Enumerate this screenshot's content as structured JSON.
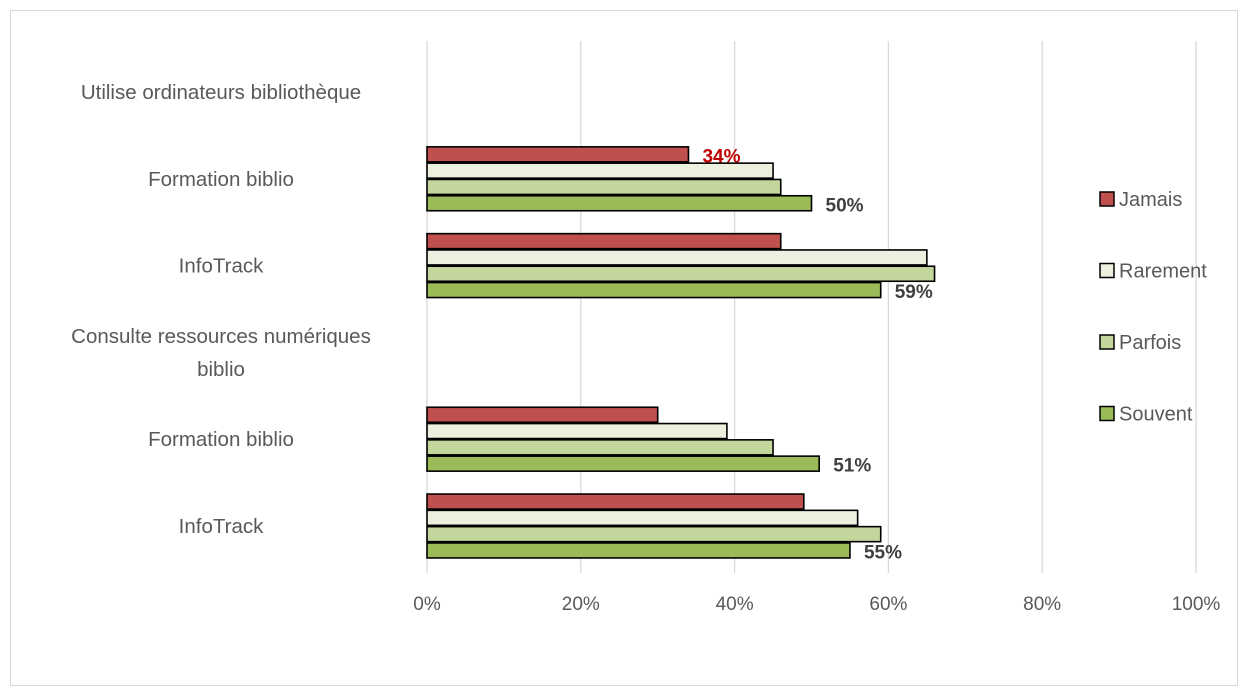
{
  "chart_data": {
    "type": "bar",
    "orientation": "horizontal",
    "title": "",
    "xlabel": "",
    "ylabel": "",
    "xlim": [
      0,
      1
    ],
    "x_ticks": [
      "0%",
      "20%",
      "40%",
      "60%",
      "80%",
      "100%"
    ],
    "grid": true,
    "legend_position": "right",
    "categories": [
      "Utilise ordinateurs bibliothèque",
      "Formation biblio",
      "InfoTrack",
      "Consulte ressources numériques biblio",
      "Formation biblio",
      "InfoTrack"
    ],
    "series": [
      {
        "name": "Jamais",
        "color": "#c0504d",
        "values": [
          null,
          0.34,
          0.46,
          null,
          0.3,
          0.49
        ]
      },
      {
        "name": "Rarement",
        "color": "#ebf1de",
        "values": [
          null,
          0.45,
          0.65,
          null,
          0.39,
          0.56
        ]
      },
      {
        "name": "Parfois",
        "color": "#c3d69b",
        "values": [
          null,
          0.46,
          0.66,
          null,
          0.45,
          0.59
        ]
      },
      {
        "name": "Souvent",
        "color": "#9bbb59",
        "values": [
          null,
          0.5,
          0.59,
          null,
          0.51,
          0.55
        ]
      }
    ],
    "data_labels": [
      {
        "category_index": 1,
        "series": "Jamais",
        "text": "34%",
        "color": "#c00000"
      },
      {
        "category_index": 1,
        "series": "Souvent",
        "text": "50%",
        "color": "#404040"
      },
      {
        "category_index": 2,
        "series": "Souvent",
        "text": "59%",
        "color": "#404040"
      },
      {
        "category_index": 4,
        "series": "Souvent",
        "text": "51%",
        "color": "#404040"
      },
      {
        "category_index": 5,
        "series": "Souvent",
        "text": "55%",
        "color": "#404040"
      }
    ]
  }
}
